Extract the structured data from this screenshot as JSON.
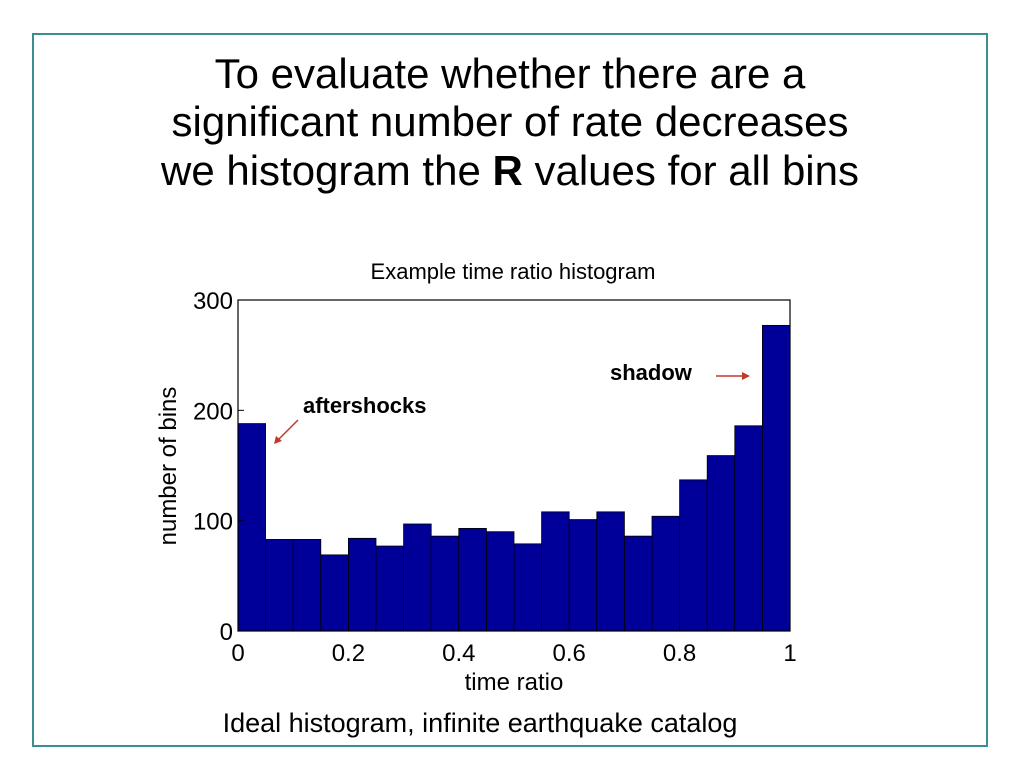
{
  "slide": {
    "title_line1": "To evaluate whether there are a",
    "title_line2": "significant number of rate decreases",
    "title_line3_before": "we histogram the ",
    "title_line3_bold": "R",
    "title_line3_after": " values for all bins",
    "caption": "Ideal histogram, infinite earthquake catalog",
    "frame_color": "#3b8f8f"
  },
  "chart_data": {
    "type": "bar",
    "title": "Example time ratio histogram",
    "xlabel": "time ratio",
    "ylabel": "number of bins",
    "xlim": [
      0,
      1
    ],
    "ylim": [
      0,
      300
    ],
    "xticks": [
      "0",
      "0.2",
      "0.4",
      "0.6",
      "0.8",
      "1"
    ],
    "yticks": [
      "0",
      "100",
      "200",
      "300"
    ],
    "bin_width": 0.05,
    "bin_starts": [
      0,
      0.05,
      0.1,
      0.15,
      0.2,
      0.25,
      0.3,
      0.35,
      0.4,
      0.45,
      0.5,
      0.55,
      0.6,
      0.65,
      0.7,
      0.75,
      0.8,
      0.85,
      0.9,
      0.95
    ],
    "values": [
      188,
      83,
      83,
      69,
      84,
      77,
      97,
      86,
      93,
      90,
      79,
      108,
      101,
      108,
      86,
      104,
      137,
      159,
      186,
      277
    ],
    "bar_color": "#000099",
    "grid": false,
    "annotations": [
      {
        "text": "aftershocks",
        "color": "#000000",
        "arrow_color": "#c0392b"
      },
      {
        "text": "shadow",
        "color": "#000000",
        "arrow_color": "#c0392b"
      }
    ]
  }
}
